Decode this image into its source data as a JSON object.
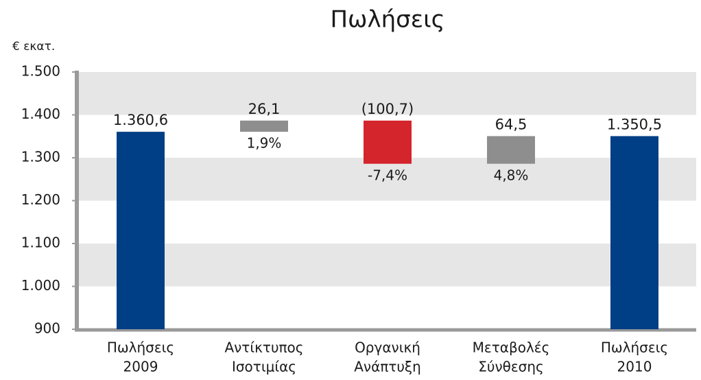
{
  "chart_data": {
    "type": "waterfall",
    "title": "Πωλήσεις",
    "y_label": "€ εκατ.",
    "categories": [
      [
        "Πωλήσεις",
        "2009"
      ],
      [
        "Αντίκτυπος",
        "Ισοτιμίας"
      ],
      [
        "Οργανική",
        "Ανάπτυξη"
      ],
      [
        "Μεταβολές",
        "Σύνθεσης"
      ],
      [
        "Πωλήσεις",
        "2010"
      ]
    ],
    "measure": [
      "total",
      "relative",
      "relative",
      "relative",
      "total"
    ],
    "values": [
      1360.6,
      26.1,
      -100.7,
      64.5,
      1350.5
    ],
    "value_labels": [
      "1.360,6",
      "26,1",
      "(100,7)",
      "64,5",
      "1.350,5"
    ],
    "pct_labels": [
      null,
      "1,9%",
      "-7,4%",
      "4,8%",
      null
    ],
    "colors": {
      "total": "#003e85",
      "increase": "#8e8e8e",
      "decrease": "#d4242c",
      "pct": "#2467b3"
    },
    "ylim": [
      900,
      1500
    ],
    "yticks": [
      900,
      {
        "value": 1000,
        "label": "1.000"
      },
      {
        "value": 1100,
        "label": "1.100"
      },
      {
        "value": 1200,
        "label": "1.200"
      },
      {
        "value": 1300,
        "label": "1.300"
      },
      {
        "value": 1400,
        "label": "1.400"
      },
      {
        "value": 1500,
        "label": "1.500"
      }
    ],
    "grid": "bands"
  }
}
